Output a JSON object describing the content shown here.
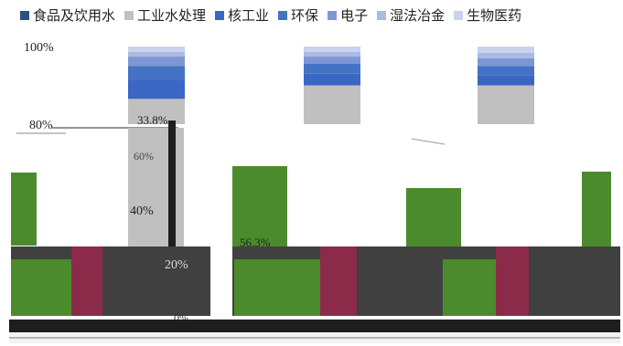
{
  "chart_data": {
    "type": "bar",
    "stacked": true,
    "categories": [
      "",
      "",
      ""
    ],
    "series": [
      {
        "name": "食品及饮用水",
        "color": "#2f4e8c",
        "values": [
          null,
          null,
          null
        ]
      },
      {
        "name": "工业水处理",
        "color": "#c0c0c0",
        "values": [
          null,
          null,
          null
        ]
      },
      {
        "name": "核工业",
        "color": "#3a66c4",
        "values": [
          null,
          null,
          null
        ]
      },
      {
        "name": "环保",
        "color": "#4472c4",
        "values": [
          null,
          null,
          null
        ]
      },
      {
        "name": "电子",
        "color": "#7e97d4",
        "values": [
          null,
          null,
          null
        ]
      },
      {
        "name": "湿法冶金",
        "color": "#a9bbe3",
        "values": [
          null,
          null,
          null
        ]
      },
      {
        "name": "生物医药",
        "color": "#c9d3ef",
        "values": [
          null,
          null,
          null
        ]
      }
    ],
    "y_ticks": [
      "100%",
      "80%",
      "60%",
      "40%",
      "20%",
      "0%"
    ],
    "ylim": [
      0,
      100
    ],
    "data_labels": [
      "33.8%",
      "56.3%"
    ],
    "legend_position": "top",
    "grid": false
  }
}
